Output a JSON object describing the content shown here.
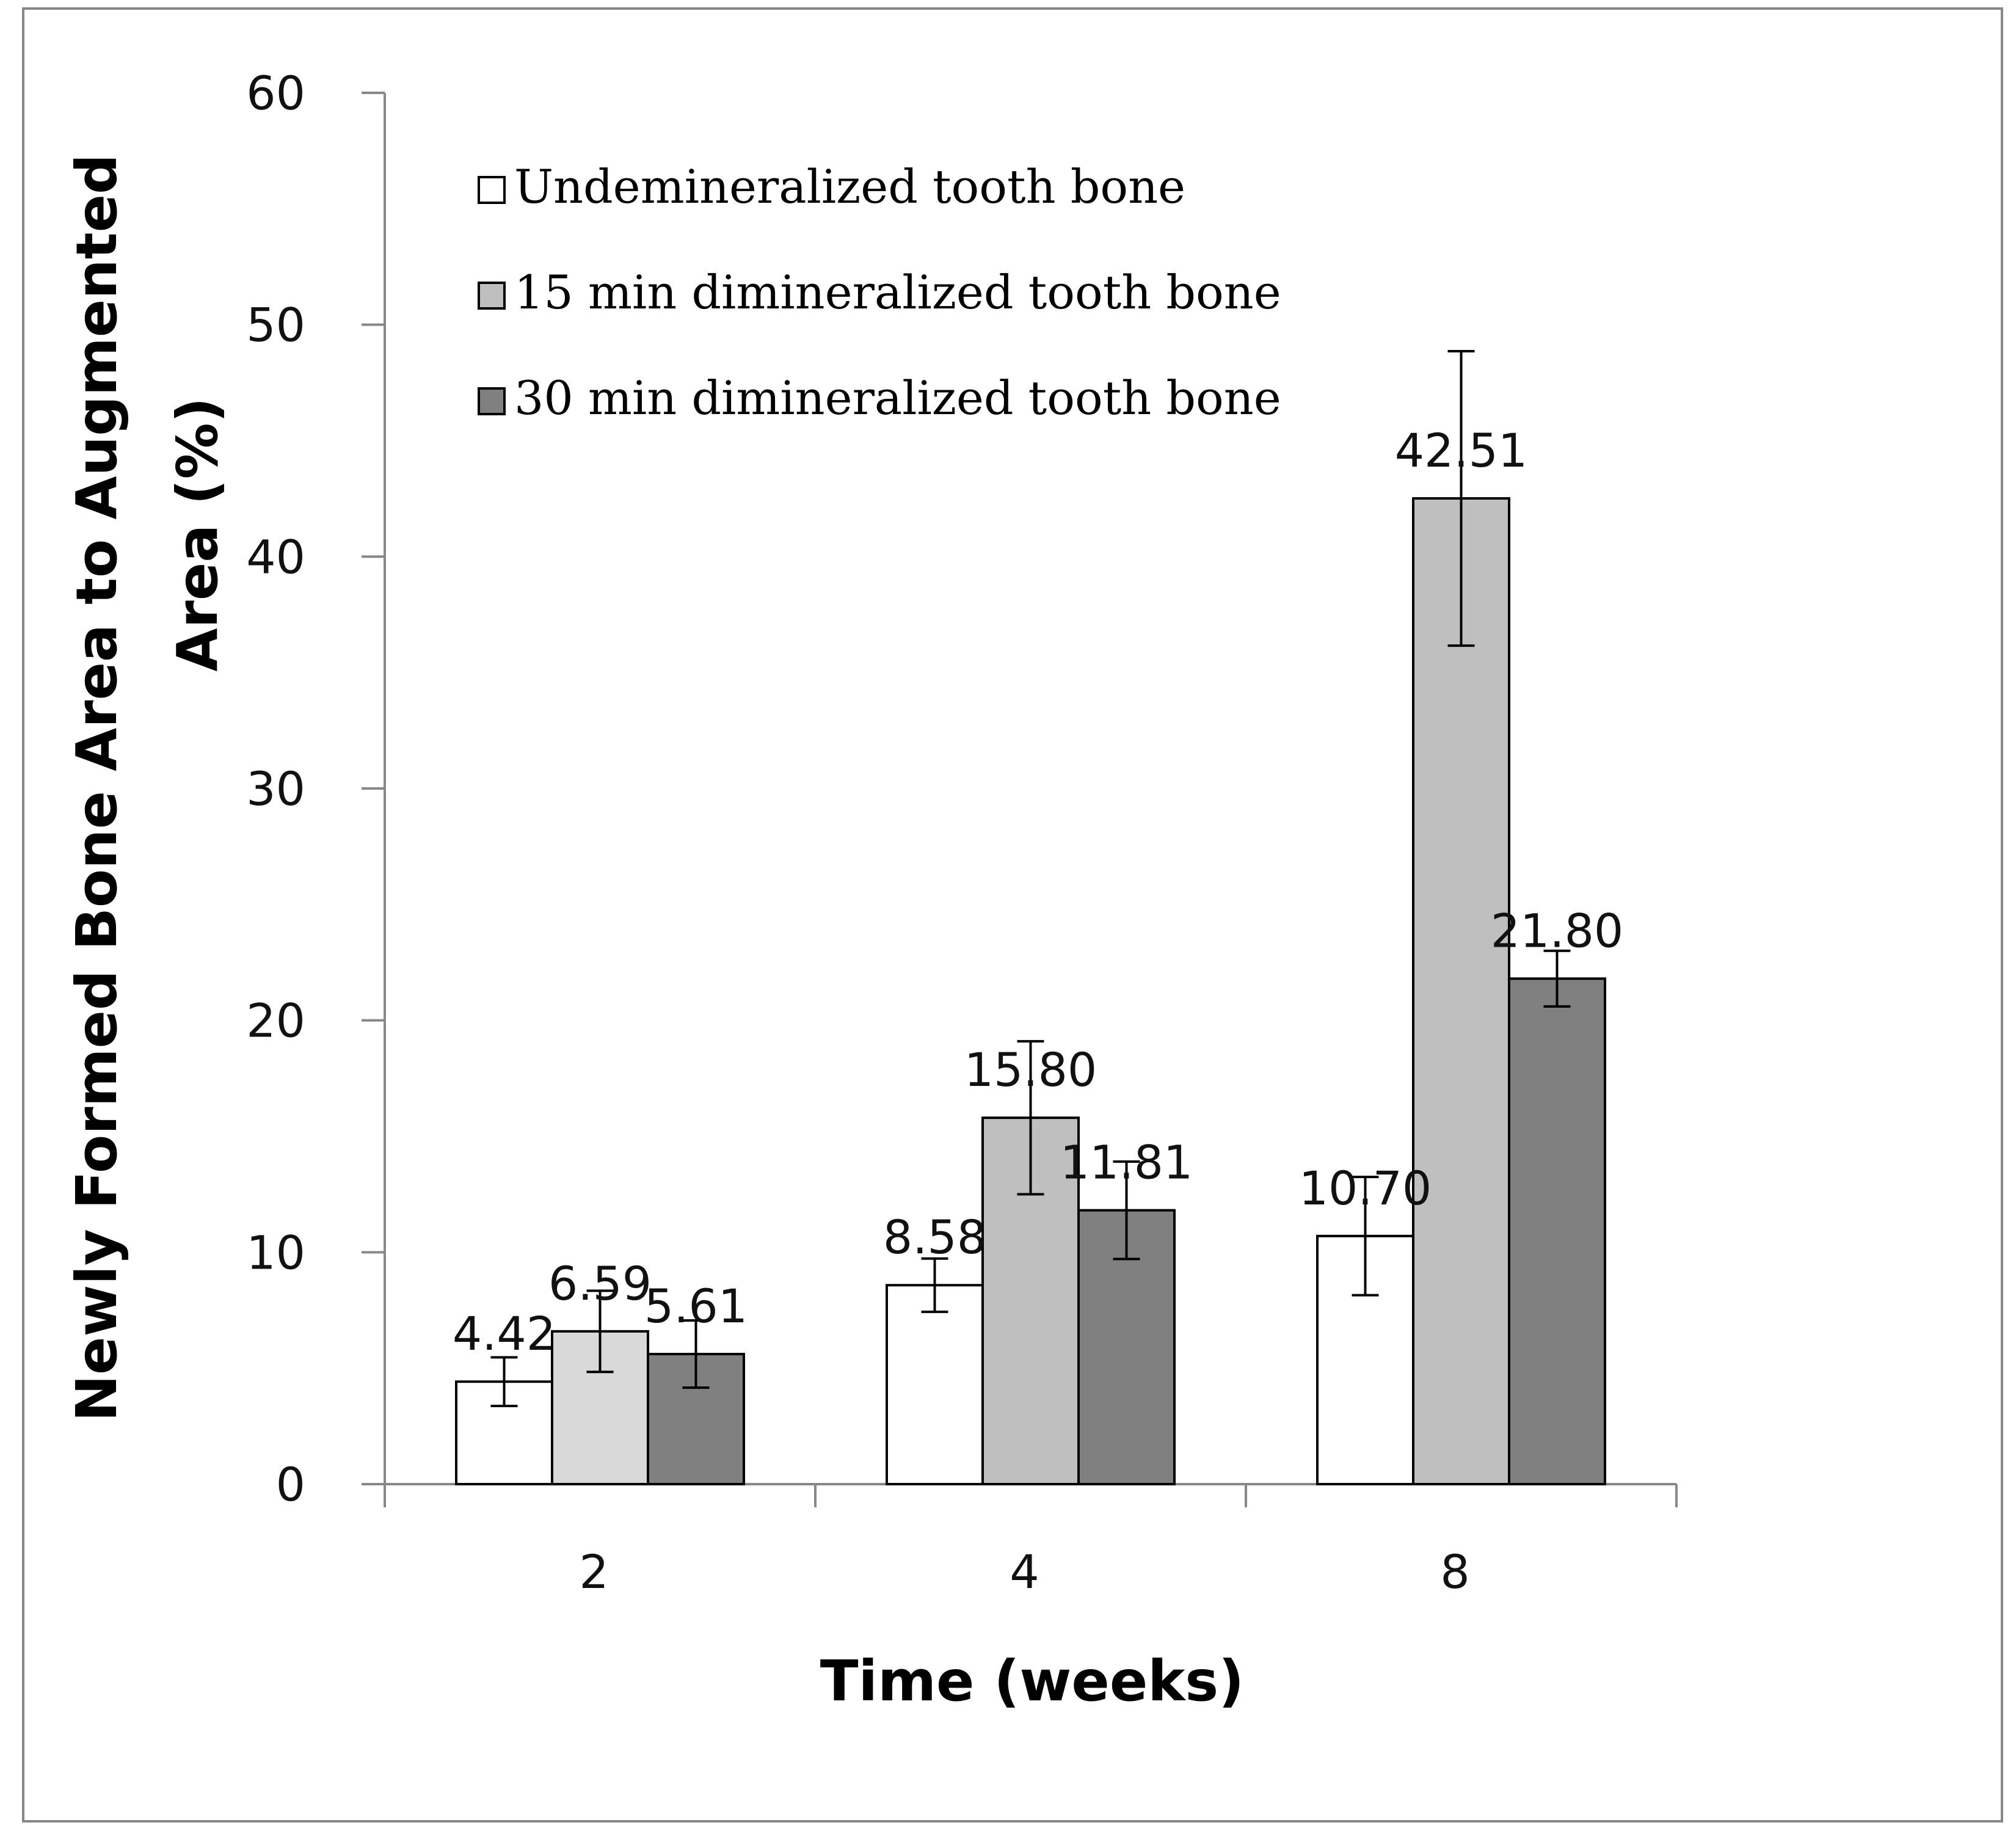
{
  "chart_data": {
    "type": "bar",
    "categories": [
      "2",
      "4",
      "8"
    ],
    "series": [
      {
        "name": "Undemineralized tooth bone",
        "values": [
          4.42,
          8.58,
          10.7
        ],
        "labels": [
          "4.42",
          "8.58",
          "10.70"
        ],
        "errors": [
          1.05,
          1.15,
          2.55
        ],
        "color": "#ffffff"
      },
      {
        "name": "15 min dimineralized tooth bone",
        "values": [
          6.59,
          15.8,
          42.51
        ],
        "labels": [
          "6.59",
          "15.80",
          "42.51"
        ],
        "errors": [
          1.75,
          3.3,
          6.35
        ],
        "color": "#d9d9d9"
      },
      {
        "name": "30 min dimineralized tooth bone",
        "values": [
          5.61,
          11.81,
          21.8
        ],
        "labels": [
          "5.61",
          "11.81",
          "21.80"
        ],
        "errors": [
          1.45,
          2.1,
          1.2
        ],
        "color": "#808080"
      }
    ],
    "series_colors_by_category": [
      [
        "#ffffff",
        "#d9d9d9",
        "#808080"
      ],
      [
        "#ffffff",
        "#bfbfbf",
        "#808080"
      ],
      [
        "#ffffff",
        "#bfbfbf",
        "#808080"
      ]
    ],
    "title": "",
    "xlabel": "Time (weeks)",
    "ylabel_line1": "Newly Formed Bone Area to Augmented",
    "ylabel_line2": "Area (%)",
    "ylim": [
      0,
      60
    ],
    "yticks": [
      0,
      10,
      20,
      30,
      40,
      50,
      60
    ],
    "legend_position": "top-left",
    "grid": false
  }
}
